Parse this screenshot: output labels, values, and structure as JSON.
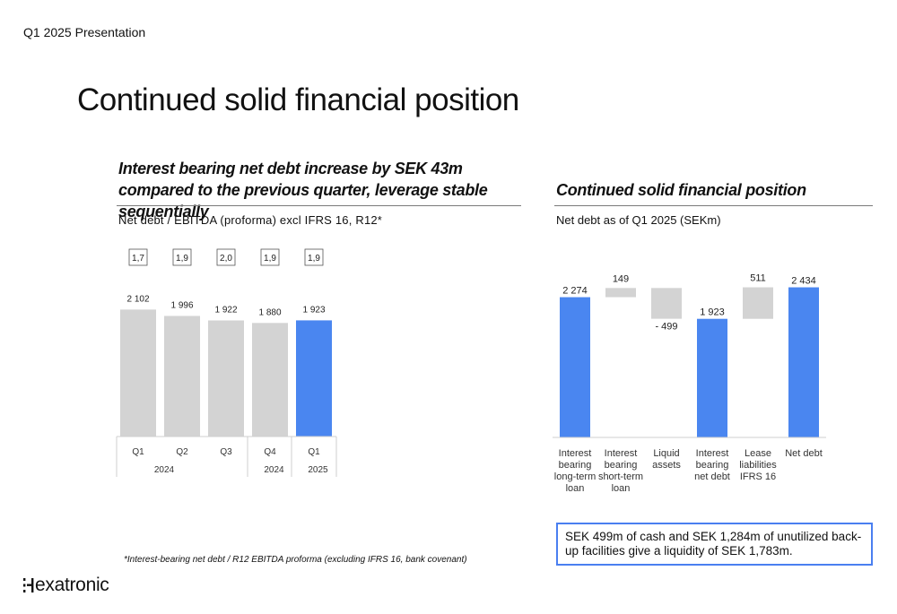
{
  "header": {
    "presentation": "Q1 2025 Presentation",
    "title": "Continued solid financial position"
  },
  "left_panel": {
    "heading": "Interest bearing net debt increase by SEK 43m compared to the previous quarter, leverage stable sequentially",
    "subtitle": "Net debt / EBITDA (proforma) excl IFRS 16, R12*"
  },
  "right_panel": {
    "heading": "Continued solid financial position",
    "subtitle": "Net debt as of Q1 2025 (SEKm)"
  },
  "footnote": "*Interest-bearing net debt / R12 EBITDA proforma (excluding IFRS 16, bank covenant)",
  "callout": "SEK 499m of cash and SEK 1,284m of unutilized back-up facilities give a liquidity of SEK 1,783m.",
  "logo": {
    "text": "exatronic"
  },
  "colors": {
    "gray_bar": "#d3d3d3",
    "blue_bar": "#4a86f0",
    "callout_border": "#4a7ff0"
  },
  "chart_data": [
    {
      "type": "bar",
      "title": "Net debt / EBITDA (proforma) excl IFRS 16, R12*",
      "categories": [
        "Q1",
        "Q2",
        "Q3",
        "Q4",
        "Q1"
      ],
      "year_groups": [
        {
          "label": "2024",
          "span": 2
        },
        {
          "label": "",
          "span": 1
        },
        {
          "label": "2024",
          "span": 1
        },
        {
          "label": "2025",
          "span": 1
        }
      ],
      "values": [
        2102,
        1996,
        1922,
        1880,
        1923
      ],
      "value_labels": [
        "2 102",
        "1 996",
        "1 922",
        "1 880",
        "1 923"
      ],
      "ratios": [
        "1,7",
        "1,9",
        "2,0",
        "1,9",
        "1,9"
      ],
      "highlight_index": 4,
      "ylim": [
        0,
        2300
      ]
    },
    {
      "type": "bar",
      "subtype": "waterfall",
      "title": "Net debt as of Q1 2025 (SEKm)",
      "categories": [
        [
          "Interest",
          "bearing",
          "long-term",
          "loan"
        ],
        [
          "Interest",
          "bearing",
          "short-term",
          "loan"
        ],
        [
          "Liquid",
          "assets"
        ],
        [
          "Interest",
          "bearing",
          "net debt"
        ],
        [
          "Lease",
          "liabilities",
          "IFRS 16"
        ],
        [
          "Net debt"
        ]
      ],
      "values": [
        2274,
        149,
        -499,
        1923,
        511,
        2434
      ],
      "value_labels": [
        "2 274",
        "149",
        "- 499",
        "1 923",
        "511",
        "2 434"
      ],
      "kinds": [
        "total",
        "delta",
        "delta",
        "total",
        "delta",
        "total"
      ],
      "ylim": [
        0,
        2500
      ]
    }
  ]
}
